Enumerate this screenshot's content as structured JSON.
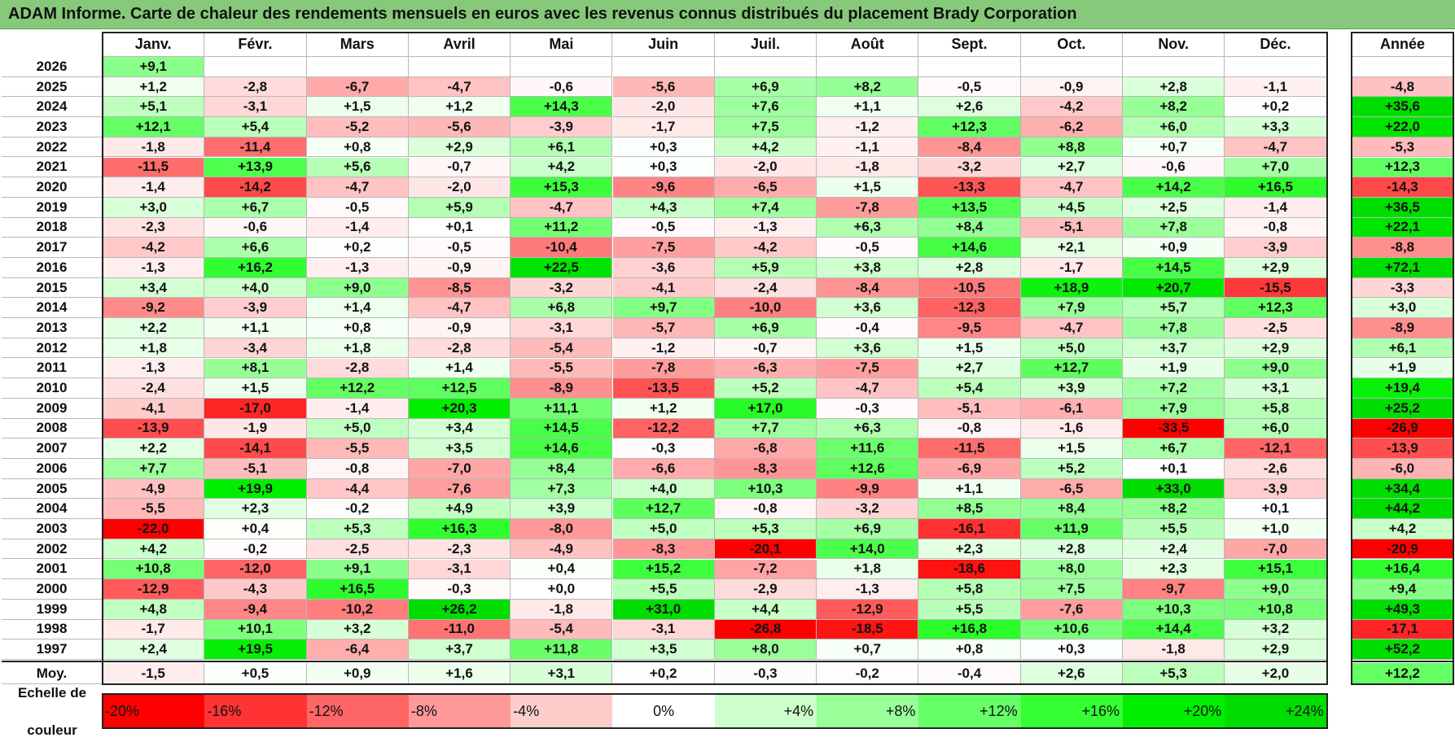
{
  "title": "ADAM Informe. Carte de chaleur des rendements mensuels en euros avec les revenus connus distribués du placement Brady Corporation",
  "chart_data": {
    "type": "heatmap",
    "columns": [
      "Janv.",
      "Févr.",
      "Mars",
      "Avril",
      "Mai",
      "Juin",
      "Juil.",
      "Août",
      "Sept.",
      "Oct.",
      "Nov.",
      "Déc."
    ],
    "year_header": "Année",
    "rows": [
      {
        "year": "2026",
        "months": [
          "+9,1",
          "",
          "",
          "",
          "",
          "",
          "",
          "",
          "",
          "",
          "",
          ""
        ],
        "annual": ""
      },
      {
        "year": "2025",
        "months": [
          "+1,2",
          "-2,8",
          "-6,7",
          "-4,7",
          "-0,6",
          "-5,6",
          "+6,9",
          "+8,2",
          "-0,5",
          "-0,9",
          "+2,8",
          "-1,1"
        ],
        "annual": "-4,8"
      },
      {
        "year": "2024",
        "months": [
          "+5,1",
          "-3,1",
          "+1,5",
          "+1,2",
          "+14,3",
          "-2,0",
          "+7,6",
          "+1,1",
          "+2,6",
          "-4,2",
          "+8,2",
          "+0,2"
        ],
        "annual": "+35,6"
      },
      {
        "year": "2023",
        "months": [
          "+12,1",
          "+5,4",
          "-5,2",
          "-5,6",
          "-3,9",
          "-1,7",
          "+7,5",
          "-1,2",
          "+12,3",
          "-6,2",
          "+6,0",
          "+3,3"
        ],
        "annual": "+22,0"
      },
      {
        "year": "2022",
        "months": [
          "-1,8",
          "-11,4",
          "+0,8",
          "+2,9",
          "+6,1",
          "+0,3",
          "+4,2",
          "-1,1",
          "-8,4",
          "+8,8",
          "+0,7",
          "-4,7"
        ],
        "annual": "-5,3"
      },
      {
        "year": "2021",
        "months": [
          "-11,5",
          "+13,9",
          "+5,6",
          "-0,7",
          "+4,2",
          "+0,3",
          "-2,0",
          "-1,8",
          "-3,2",
          "+2,7",
          "-0,6",
          "+7,0"
        ],
        "annual": "+12,3"
      },
      {
        "year": "2020",
        "months": [
          "-1,4",
          "-14,2",
          "-4,7",
          "-2,0",
          "+15,3",
          "-9,6",
          "-6,5",
          "+1,5",
          "-13,3",
          "-4,7",
          "+14,2",
          "+16,5"
        ],
        "annual": "-14,3"
      },
      {
        "year": "2019",
        "months": [
          "+3,0",
          "+6,7",
          "-0,5",
          "+5,9",
          "-4,7",
          "+4,3",
          "+7,4",
          "-7,8",
          "+13,5",
          "+4,5",
          "+2,5",
          "-1,4"
        ],
        "annual": "+36,5"
      },
      {
        "year": "2018",
        "months": [
          "-2,3",
          "-0,6",
          "-1,4",
          "+0,1",
          "+11,2",
          "-0,5",
          "-1,3",
          "+6,3",
          "+8,4",
          "-5,1",
          "+7,8",
          "-0,8"
        ],
        "annual": "+22,1"
      },
      {
        "year": "2017",
        "months": [
          "-4,2",
          "+6,6",
          "+0,2",
          "-0,5",
          "-10,4",
          "-7,5",
          "-4,2",
          "-0,5",
          "+14,6",
          "+2,1",
          "+0,9",
          "-3,9"
        ],
        "annual": "-8,8"
      },
      {
        "year": "2016",
        "months": [
          "-1,3",
          "+16,2",
          "-1,3",
          "-0,9",
          "+22,5",
          "-3,6",
          "+5,9",
          "+3,8",
          "+2,8",
          "-1,7",
          "+14,5",
          "+2,9"
        ],
        "annual": "+72,1"
      },
      {
        "year": "2015",
        "months": [
          "+3,4",
          "+4,0",
          "+9,0",
          "-8,5",
          "-3,2",
          "-4,1",
          "-2,4",
          "-8,4",
          "-10,5",
          "+18,9",
          "+20,7",
          "-15,5"
        ],
        "annual": "-3,3"
      },
      {
        "year": "2014",
        "months": [
          "-9,2",
          "-3,9",
          "+1,4",
          "-4,7",
          "+6,8",
          "+9,7",
          "-10,0",
          "+3,6",
          "-12,3",
          "+7,9",
          "+5,7",
          "+12,3"
        ],
        "annual": "+3,0"
      },
      {
        "year": "2013",
        "months": [
          "+2,2",
          "+1,1",
          "+0,8",
          "-0,9",
          "-3,1",
          "-5,7",
          "+6,9",
          "-0,4",
          "-9,5",
          "-4,7",
          "+7,8",
          "-2,5"
        ],
        "annual": "-8,9"
      },
      {
        "year": "2012",
        "months": [
          "+1,8",
          "-3,4",
          "+1,8",
          "-2,8",
          "-5,4",
          "-1,2",
          "-0,7",
          "+3,6",
          "+1,5",
          "+5,0",
          "+3,7",
          "+2,9"
        ],
        "annual": "+6,1"
      },
      {
        "year": "2011",
        "months": [
          "-1,3",
          "+8,1",
          "-2,8",
          "+1,4",
          "-5,5",
          "-7,8",
          "-6,3",
          "-7,5",
          "+2,7",
          "+12,7",
          "+1,9",
          "+9,0"
        ],
        "annual": "+1,9"
      },
      {
        "year": "2010",
        "months": [
          "-2,4",
          "+1,5",
          "+12,2",
          "+12,5",
          "-8,9",
          "-13,5",
          "+5,2",
          "-4,7",
          "+5,4",
          "+3,9",
          "+7,2",
          "+3,1"
        ],
        "annual": "+19,4"
      },
      {
        "year": "2009",
        "months": [
          "-4,1",
          "-17,0",
          "-1,4",
          "+20,3",
          "+11,1",
          "+1,2",
          "+17,0",
          "-0,3",
          "-5,1",
          "-6,1",
          "+7,9",
          "+5,8"
        ],
        "annual": "+25,2"
      },
      {
        "year": "2008",
        "months": [
          "-13,9",
          "-1,9",
          "+5,0",
          "+3,4",
          "+14,5",
          "-12,2",
          "+7,7",
          "+6,3",
          "-0,8",
          "-1,6",
          "-33,5",
          "+6,0"
        ],
        "annual": "-26,9"
      },
      {
        "year": "2007",
        "months": [
          "+2,2",
          "-14,1",
          "-5,5",
          "+3,5",
          "+14,6",
          "-0,3",
          "-6,8",
          "+11,6",
          "-11,5",
          "+1,5",
          "+6,7",
          "-12,1"
        ],
        "annual": "-13,9"
      },
      {
        "year": "2006",
        "months": [
          "+7,7",
          "-5,1",
          "-0,8",
          "-7,0",
          "+8,4",
          "-6,6",
          "-8,3",
          "+12,6",
          "-6,9",
          "+5,2",
          "+0,1",
          "-2,6"
        ],
        "annual": "-6,0"
      },
      {
        "year": "2005",
        "months": [
          "-4,9",
          "+19,9",
          "-4,4",
          "-7,6",
          "+7,3",
          "+4,0",
          "+10,3",
          "-9,9",
          "+1,1",
          "-6,5",
          "+33,0",
          "-3,9"
        ],
        "annual": "+34,4"
      },
      {
        "year": "2004",
        "months": [
          "-5,5",
          "+2,3",
          "-0,2",
          "+4,9",
          "+3,9",
          "+12,7",
          "-0,8",
          "-3,2",
          "+8,5",
          "+8,4",
          "+8,2",
          "+0,1"
        ],
        "annual": "+44,2"
      },
      {
        "year": "2003",
        "months": [
          "-22,0",
          "+0,4",
          "+5,3",
          "+16,3",
          "-8,0",
          "+5,0",
          "+5,3",
          "+6,9",
          "-16,1",
          "+11,9",
          "+5,5",
          "+1,0"
        ],
        "annual": "+4,2"
      },
      {
        "year": "2002",
        "months": [
          "+4,2",
          "-0,2",
          "-2,5",
          "-2,3",
          "-4,9",
          "-8,3",
          "-20,1",
          "+14,0",
          "+2,3",
          "+2,8",
          "+2,4",
          "-7,0"
        ],
        "annual": "-20,9"
      },
      {
        "year": "2001",
        "months": [
          "+10,8",
          "-12,0",
          "+9,1",
          "-3,1",
          "+0,4",
          "+15,2",
          "-7,2",
          "+1,8",
          "-18,6",
          "+8,0",
          "+2,3",
          "+15,1"
        ],
        "annual": "+16,4"
      },
      {
        "year": "2000",
        "months": [
          "-12,9",
          "-4,3",
          "+16,5",
          "-0,3",
          "+0,0",
          "+5,5",
          "-2,9",
          "-1,3",
          "+5,8",
          "+7,5",
          "-9,7",
          "+9,0"
        ],
        "annual": "+9,4"
      },
      {
        "year": "1999",
        "months": [
          "+4,8",
          "-9,4",
          "-10,2",
          "+26,2",
          "-1,8",
          "+31,0",
          "+4,4",
          "-12,9",
          "+5,5",
          "-7,6",
          "+10,3",
          "+10,8"
        ],
        "annual": "+49,3"
      },
      {
        "year": "1998",
        "months": [
          "-1,7",
          "+10,1",
          "+3,2",
          "-11,0",
          "-5,4",
          "-3,1",
          "-26,8",
          "-18,5",
          "+16,8",
          "+10,6",
          "+14,4",
          "+3,2"
        ],
        "annual": "-17,1"
      },
      {
        "year": "1997",
        "months": [
          "+2,4",
          "+19,5",
          "-6,4",
          "+3,7",
          "+11,8",
          "+3,5",
          "+8,0",
          "+0,7",
          "+0,8",
          "+0,3",
          "-1,8",
          "+2,9"
        ],
        "annual": "+52,2"
      }
    ],
    "average": {
      "label": "Moy.",
      "months": [
        "-1,5",
        "+0,5",
        "+0,9",
        "+1,6",
        "+3,1",
        "+0,2",
        "-0,3",
        "-0,2",
        "-0,4",
        "+2,6",
        "+5,3",
        "+2,0"
      ],
      "annual": "+12,2"
    },
    "legend": {
      "label_line1": "Echelle de",
      "label_line2": "couleur",
      "steps": [
        {
          "label": "-20%",
          "value": -20,
          "color": "#ff0000"
        },
        {
          "label": "-16%",
          "value": -16,
          "color": "#ff3333"
        },
        {
          "label": "-12%",
          "value": -12,
          "color": "#ff6666"
        },
        {
          "label": "-8%",
          "value": -8,
          "color": "#ff9999"
        },
        {
          "label": "-4%",
          "value": -4,
          "color": "#ffcccc"
        },
        {
          "label": "0%",
          "value": 0,
          "color": "#ffffff"
        },
        {
          "label": "+4%",
          "value": 4,
          "color": "#ccffcc"
        },
        {
          "label": "+8%",
          "value": 8,
          "color": "#99ff99"
        },
        {
          "label": "+12%",
          "value": 12,
          "color": "#66ff66"
        },
        {
          "label": "+16%",
          "value": 16,
          "color": "#33ff33"
        },
        {
          "label": "+20%",
          "value": 20,
          "color": "#00ee00"
        },
        {
          "label": "+24%",
          "value": 24,
          "color": "#00dd00"
        }
      ]
    }
  }
}
